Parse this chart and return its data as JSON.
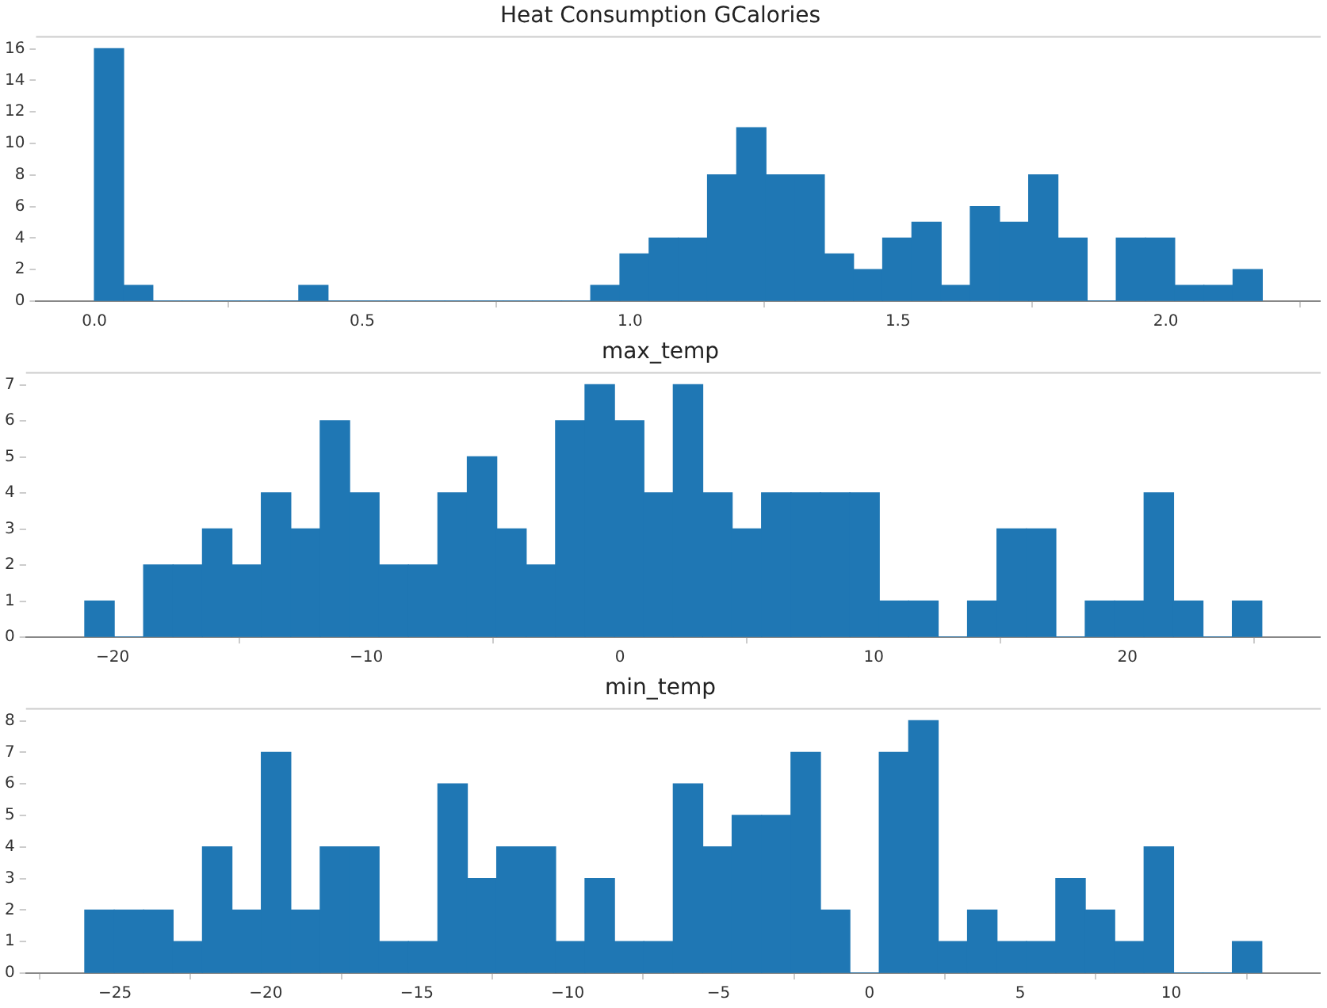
{
  "chart_data": [
    {
      "type": "histogram",
      "title": "Heat Consumption GCalories",
      "color": "#1f77b4",
      "grid": false,
      "bins": [
        0,
        0.0545,
        0.109,
        0.1635,
        0.218,
        0.2725,
        0.327,
        0.3815,
        0.436,
        0.4905,
        0.545,
        0.5995,
        0.654,
        0.7085,
        0.763,
        0.8175,
        0.872,
        0.9265,
        0.981,
        1.0355,
        1.09,
        1.1445,
        1.199,
        1.2535,
        1.308,
        1.3625,
        1.417,
        1.4715,
        1.526,
        1.5805,
        1.635,
        1.6895,
        1.744,
        1.7985,
        1.853,
        1.9075,
        1.962,
        2.0165,
        2.071,
        2.1255,
        2.18
      ],
      "values": [
        16,
        1,
        0,
        0,
        0,
        0,
        0,
        1,
        0,
        0,
        0,
        0,
        0,
        0,
        0,
        0,
        0,
        1,
        3,
        4,
        4,
        8,
        11,
        8,
        8,
        3,
        2,
        4,
        5,
        1,
        6,
        5,
        8,
        4,
        0,
        4,
        4,
        1,
        1,
        2
      ],
      "xlim": [
        -0.109,
        2.289
      ],
      "xticks": [
        {
          "value": 0,
          "label": "0.0"
        },
        0.5,
        {
          "value": 1,
          "label": "1.0"
        },
        1.5,
        {
          "value": 2,
          "label": "2.0"
        }
      ],
      "ylim": [
        0,
        16.8
      ],
      "yticks": [
        0,
        2,
        4,
        6,
        8,
        10,
        12,
        14,
        16
      ]
    },
    {
      "type": "histogram",
      "title": "max_temp",
      "color": "#1f77b4",
      "grid": false,
      "bins": [
        -21.1,
        -19.94,
        -18.78,
        -17.62,
        -16.46,
        -15.3,
        -14.14,
        -12.98,
        -11.82,
        -10.66,
        -9.5,
        -8.34,
        -7.18,
        -6.02,
        -4.86,
        -3.7,
        -2.54,
        -1.38,
        -0.22,
        0.94,
        2.1,
        3.26,
        4.42,
        5.58,
        6.74,
        7.9,
        9.06,
        10.22,
        11.38,
        12.54,
        13.7,
        14.86,
        16.02,
        17.18,
        18.34,
        19.5,
        20.66,
        21.82,
        22.98,
        24.14,
        25.3
      ],
      "values": [
        1,
        0,
        2,
        2,
        3,
        2,
        4,
        3,
        6,
        4,
        2,
        2,
        4,
        5,
        3,
        2,
        6,
        7,
        6,
        4,
        7,
        4,
        3,
        4,
        4,
        4,
        4,
        1,
        1,
        0,
        1,
        3,
        3,
        0,
        1,
        1,
        4,
        1,
        0,
        1
      ],
      "xlim": [
        -23.42,
        27.62
      ],
      "xticks": [
        {
          "value": -20,
          "label": "−20"
        },
        {
          "value": -10,
          "label": "−10"
        },
        0,
        10,
        20
      ],
      "ylim": [
        0,
        7.35
      ],
      "yticks": [
        0,
        1,
        2,
        3,
        4,
        5,
        6,
        7
      ]
    },
    {
      "type": "histogram",
      "title": "min_temp",
      "color": "#1f77b4",
      "grid": false,
      "bins": [
        -26,
        -25.025,
        -24.05,
        -23.075,
        -22.1,
        -21.125,
        -20.15,
        -19.175,
        -18.2,
        -17.225,
        -16.25,
        -15.275,
        -14.3,
        -13.325,
        -12.35,
        -11.375,
        -10.4,
        -9.425,
        -8.45,
        -7.475,
        -6.5,
        -5.525,
        -4.55,
        -3.575,
        -2.6,
        -1.625,
        -0.65,
        0.325,
        1.3,
        2.275,
        3.25,
        4.225,
        5.2,
        6.175,
        7.15,
        8.125,
        9.1,
        10.075,
        11.05,
        12.025,
        13
      ],
      "values": [
        2,
        2,
        2,
        1,
        4,
        2,
        7,
        2,
        4,
        4,
        1,
        1,
        6,
        3,
        4,
        4,
        1,
        3,
        1,
        1,
        6,
        4,
        5,
        5,
        7,
        2,
        0,
        7,
        8,
        1,
        2,
        1,
        1,
        3,
        2,
        1,
        4,
        0,
        0,
        1
      ],
      "xlim": [
        -27.95,
        14.95
      ],
      "xticks": [
        {
          "value": -25,
          "label": "−25"
        },
        {
          "value": -20,
          "label": "−20"
        },
        {
          "value": -15,
          "label": "−15"
        },
        {
          "value": -10,
          "label": "−10"
        },
        {
          "value": -5,
          "label": "−5"
        },
        0,
        5,
        10
      ],
      "ylim": [
        0,
        8.4
      ],
      "yticks": [
        0,
        1,
        2,
        3,
        4,
        5,
        6,
        7,
        8
      ]
    }
  ]
}
